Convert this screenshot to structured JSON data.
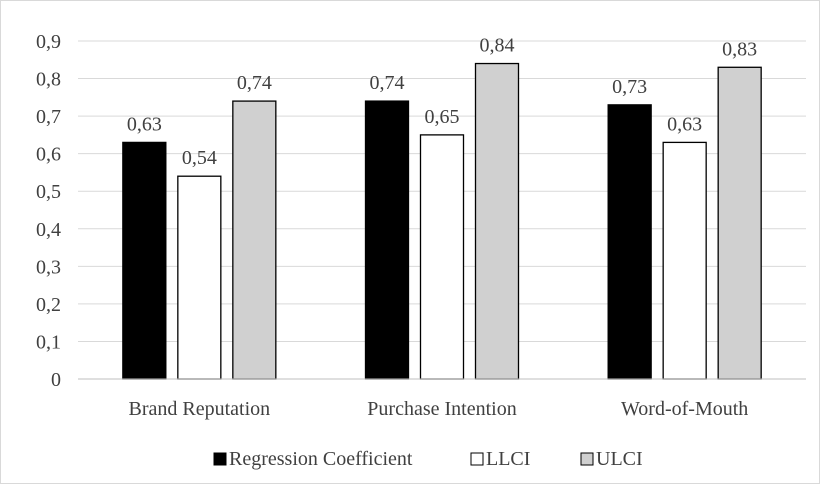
{
  "chart_data": {
    "type": "bar",
    "categories": [
      "Brand Reputation",
      "Purchase Intention",
      "Word-of-Mouth"
    ],
    "series": [
      {
        "name": "Regression Coefficient",
        "values": [
          0.63,
          0.74,
          0.73
        ],
        "labels": [
          "0,63",
          "0,74",
          "0,73"
        ],
        "color": "#000000"
      },
      {
        "name": "LLCI",
        "values": [
          0.54,
          0.65,
          0.63
        ],
        "labels": [
          "0,54",
          "0,65",
          "0,63"
        ],
        "color": "#ffffff"
      },
      {
        "name": "ULCI",
        "values": [
          0.74,
          0.84,
          0.83
        ],
        "labels": [
          "0,74",
          "0,84",
          "0,83"
        ],
        "color": "#d0d0d0"
      }
    ],
    "ylim": [
      0,
      0.9
    ],
    "yticks": [
      0,
      0.1,
      0.2,
      0.3,
      0.4,
      0.5,
      0.6,
      0.7,
      0.8,
      0.9
    ],
    "ytick_labels": [
      "0",
      "0,1",
      "0,2",
      "0,3",
      "0,4",
      "0,5",
      "0,6",
      "0,7",
      "0,8",
      "0,9"
    ],
    "grid": true,
    "legend_position": "bottom",
    "title": "",
    "xlabel": "",
    "ylabel": ""
  }
}
